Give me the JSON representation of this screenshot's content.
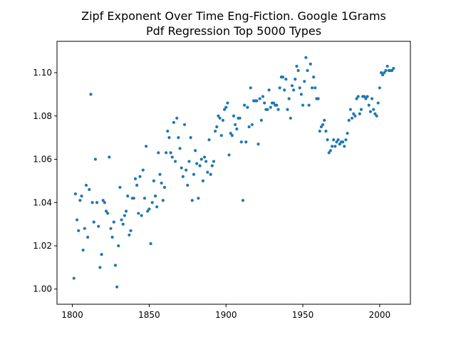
{
  "chart_data": {
    "type": "scatter",
    "title": "Zipf Exponent Over Time Eng-Fiction. Google 1Grams",
    "subtitle": "Pdf Regression Top 5000 Types",
    "xlabel": "",
    "ylabel": "",
    "xlim": [
      1790,
      2020
    ],
    "ylim": [
      0.993,
      1.1145
    ],
    "xticks": [
      1800,
      1850,
      1900,
      1950,
      2000
    ],
    "xtick_labels": [
      "1800",
      "1850",
      "1900",
      "1950",
      "2000"
    ],
    "yticks": [
      1.0,
      1.02,
      1.04,
      1.06,
      1.08,
      1.1
    ],
    "ytick_labels": [
      "1.00",
      "1.02",
      "1.04",
      "1.06",
      "1.08",
      "1.10"
    ],
    "grid": false,
    "marker_color": "#1f77b4",
    "series": [
      {
        "x": [
          1801,
          1802,
          1803,
          1804,
          1805,
          1806,
          1807,
          1808,
          1809,
          1810,
          1811,
          1812,
          1813,
          1814,
          1815,
          1816,
          1817,
          1818,
          1819,
          1820,
          1821,
          1822,
          1823,
          1824,
          1825,
          1826,
          1827,
          1828,
          1829,
          1830,
          1831,
          1832,
          1833,
          1834,
          1835,
          1836,
          1837,
          1838,
          1839,
          1840,
          1841,
          1842,
          1843,
          1844,
          1845,
          1846,
          1847,
          1848,
          1849,
          1850,
          1851,
          1852,
          1853,
          1854,
          1855,
          1856,
          1857,
          1858,
          1859,
          1860,
          1861,
          1862,
          1863,
          1864,
          1865,
          1866,
          1867,
          1868,
          1869,
          1870,
          1871,
          1872,
          1873,
          1874,
          1875,
          1876,
          1877,
          1878,
          1879,
          1880,
          1881,
          1882,
          1883,
          1884,
          1885,
          1886,
          1887,
          1888,
          1889,
          1890,
          1891,
          1892,
          1893,
          1894,
          1895,
          1896,
          1897,
          1898,
          1899,
          1900,
          1901,
          1902,
          1903,
          1904,
          1905,
          1906,
          1907,
          1908,
          1909,
          1910,
          1911,
          1912,
          1913,
          1914,
          1915,
          1916,
          1917,
          1918,
          1919,
          1920,
          1921,
          1922,
          1923,
          1924,
          1925,
          1926,
          1927,
          1928,
          1929,
          1930,
          1931,
          1932,
          1933,
          1934,
          1935,
          1936,
          1937,
          1938,
          1939,
          1940,
          1941,
          1942,
          1943,
          1944,
          1945,
          1946,
          1947,
          1948,
          1949,
          1950,
          1951,
          1952,
          1953,
          1954,
          1955,
          1956,
          1957,
          1958,
          1959,
          1960,
          1961,
          1962,
          1963,
          1964,
          1965,
          1966,
          1967,
          1968,
          1969,
          1970,
          1971,
          1972,
          1973,
          1974,
          1975,
          1976,
          1977,
          1978,
          1979,
          1980,
          1981,
          1982,
          1983,
          1984,
          1985,
          1986,
          1987,
          1988,
          1989,
          1990,
          1991,
          1992,
          1993,
          1994,
          1995,
          1996,
          1997,
          1998,
          1999,
          2000,
          2001,
          2002,
          2003,
          2004,
          2005,
          2006,
          2007,
          2008,
          2009
        ],
        "y": [
          1.005,
          1.044,
          1.032,
          1.027,
          1.041,
          1.043,
          1.018,
          1.028,
          1.048,
          1.024,
          1.046,
          1.09,
          1.04,
          1.031,
          1.06,
          1.04,
          1.029,
          1.01,
          1.016,
          1.041,
          1.04,
          1.036,
          1.035,
          1.061,
          1.028,
          1.024,
          1.031,
          1.011,
          1.001,
          1.02,
          1.047,
          1.032,
          1.03,
          1.034,
          1.036,
          1.043,
          1.025,
          1.027,
          1.042,
          1.042,
          1.051,
          1.048,
          1.035,
          1.052,
          1.034,
          1.055,
          1.042,
          1.066,
          1.036,
          1.037,
          1.021,
          1.04,
          1.05,
          1.043,
          1.038,
          1.063,
          1.053,
          1.049,
          1.041,
          1.047,
          1.063,
          1.073,
          1.07,
          1.063,
          1.061,
          1.077,
          1.059,
          1.079,
          1.07,
          1.065,
          1.056,
          1.052,
          1.076,
          1.055,
          1.048,
          1.059,
          1.07,
          1.041,
          1.053,
          1.064,
          1.058,
          1.042,
          1.057,
          1.06,
          1.05,
          1.061,
          1.059,
          1.054,
          1.069,
          1.053,
          1.057,
          1.059,
          1.073,
          1.075,
          1.08,
          1.079,
          1.071,
          1.078,
          1.083,
          1.084,
          1.086,
          1.062,
          1.072,
          1.071,
          1.08,
          1.076,
          1.074,
          1.079,
          1.079,
          1.068,
          1.041,
          1.085,
          1.068,
          1.084,
          1.075,
          1.093,
          1.076,
          1.087,
          1.087,
          1.087,
          1.067,
          1.088,
          1.078,
          1.089,
          1.086,
          1.083,
          1.083,
          1.092,
          1.084,
          1.086,
          1.086,
          1.085,
          1.085,
          1.083,
          1.093,
          1.098,
          1.098,
          1.092,
          1.097,
          1.083,
          1.088,
          1.079,
          1.094,
          1.092,
          1.097,
          1.103,
          1.101,
          1.093,
          1.09,
          1.085,
          1.096,
          1.107,
          1.101,
          1.085,
          1.104,
          1.093,
          1.098,
          1.093,
          1.088,
          1.088,
          1.073,
          1.075,
          1.076,
          1.078,
          1.073,
          1.069,
          1.063,
          1.064,
          1.066,
          1.069,
          1.066,
          1.068,
          1.069,
          1.067,
          1.068,
          1.068,
          1.066,
          1.069,
          1.072,
          1.078,
          1.083,
          1.079,
          1.081,
          1.08,
          1.088,
          1.089,
          1.081,
          1.083,
          1.089,
          1.089,
          1.088,
          1.089,
          1.085,
          1.082,
          1.088,
          1.083,
          1.081,
          1.08,
          1.086,
          1.093,
          1.1,
          1.099,
          1.1,
          1.101,
          1.103,
          1.101,
          1.101,
          1.101,
          1.102
        ]
      }
    ]
  }
}
